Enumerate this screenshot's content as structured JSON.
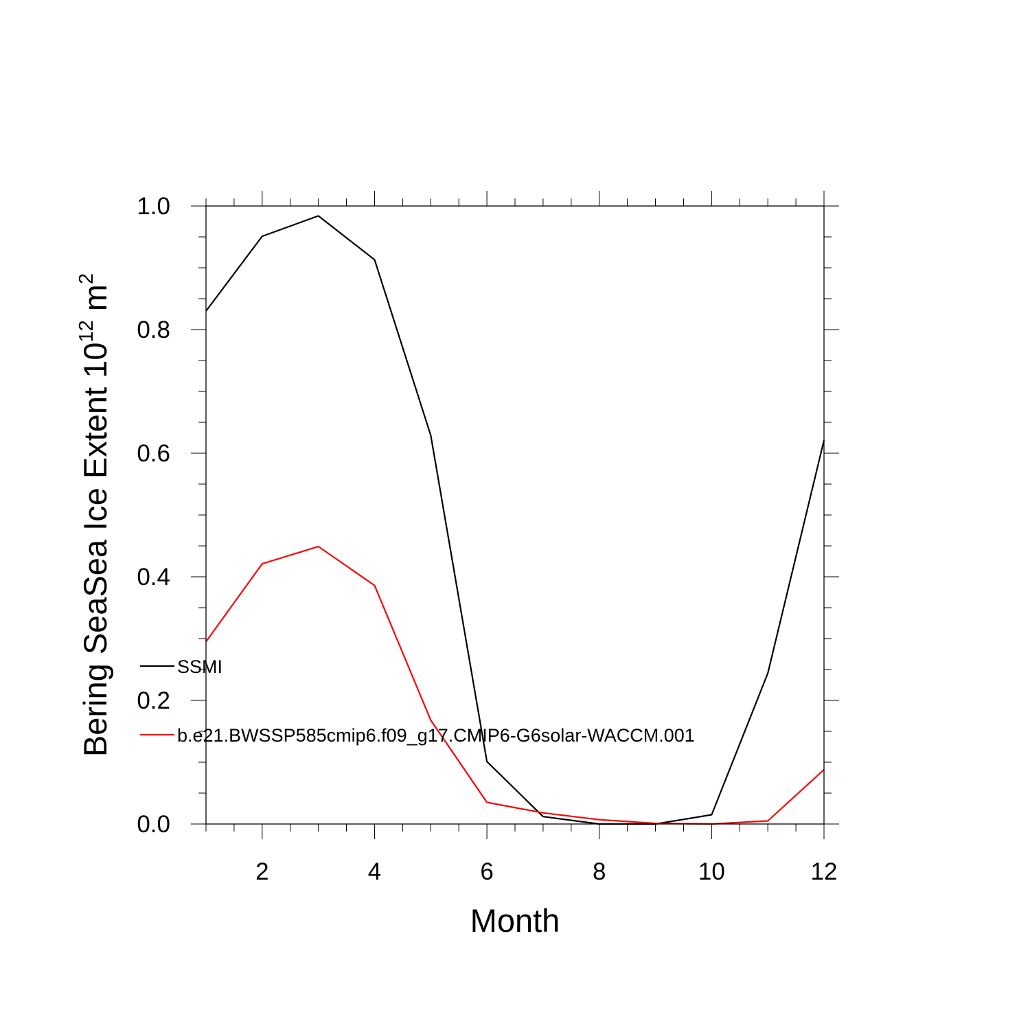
{
  "chart_data": {
    "type": "line",
    "xlabel": "Month",
    "ylabel": {
      "prefix": "Bering SeaSea Ice Extent 10",
      "sup1": "12",
      "mid": " m",
      "sup2": "2"
    },
    "xlim": [
      1,
      12
    ],
    "ylim": [
      0,
      1.0
    ],
    "x_ticks": [
      2,
      4,
      6,
      8,
      10,
      12
    ],
    "y_ticks": [
      "0.0",
      "0.2",
      "0.4",
      "0.6",
      "0.8",
      "1.0"
    ],
    "grid": false,
    "legend_placement": "lower-left",
    "x": [
      1,
      2,
      3,
      4,
      5,
      6,
      7,
      8,
      9,
      10,
      11,
      12
    ],
    "series": [
      {
        "name": "SSMI",
        "color": "#000000",
        "values": [
          0.83,
          0.951,
          0.984,
          0.913,
          0.629,
          0.101,
          0.012,
          0.0,
          0.0,
          0.015,
          0.244,
          0.621
        ]
      },
      {
        "name": "b.e21.BWSSP585cmip6.f09_g17.CMIP6-G6solar-WACCM.001",
        "color": "#ff0000",
        "values": [
          0.295,
          0.421,
          0.449,
          0.386,
          0.168,
          0.035,
          0.018,
          0.007,
          0.001,
          0.0,
          0.005,
          0.088
        ]
      }
    ]
  }
}
